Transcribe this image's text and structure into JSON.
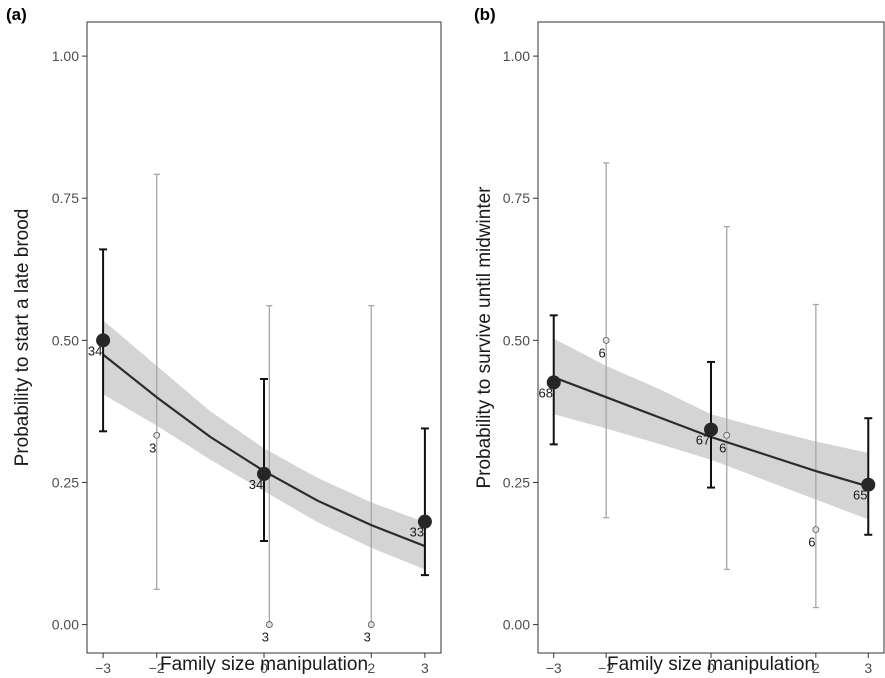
{
  "chart_data": [
    {
      "type": "scatter",
      "panel_label": "(a)",
      "xlabel": "Family size manipulation",
      "ylabel": "Probability to start a late brood",
      "xlim": [
        -3.3,
        3.3
      ],
      "ylim": [
        -0.05,
        1.06
      ],
      "x_ticks": [
        -3,
        -2,
        0,
        2,
        3
      ],
      "x_tick_labels": [
        "−3",
        "−2",
        "0",
        "2",
        "3"
      ],
      "y_ticks": [
        0,
        0.25,
        0.5,
        0.75,
        1
      ],
      "y_tick_labels": [
        "0.00",
        "0.25",
        "0.50",
        "0.75",
        "1.00"
      ],
      "grid": false,
      "fit": {
        "x": [
          -3,
          -2,
          -1,
          0,
          1,
          2,
          3
        ],
        "y": [
          0.475,
          0.4,
          0.33,
          0.27,
          0.218,
          0.175,
          0.138
        ],
        "ci_lower": [
          0.405,
          0.35,
          0.29,
          0.235,
          0.18,
          0.135,
          0.097
        ],
        "ci_upper": [
          0.535,
          0.455,
          0.375,
          0.31,
          0.258,
          0.215,
          0.18
        ]
      },
      "main_points": [
        {
          "x": -3,
          "y": 0.5,
          "lo": 0.34,
          "hi": 0.66,
          "n": "34"
        },
        {
          "x": 0,
          "y": 0.265,
          "lo": 0.147,
          "hi": 0.432,
          "n": "34"
        },
        {
          "x": 3,
          "y": 0.181,
          "lo": 0.087,
          "hi": 0.345,
          "n": "33"
        }
      ],
      "minor_points": [
        {
          "x": -2,
          "y": 0.333,
          "lo": 0.062,
          "hi": 0.792,
          "n": "3"
        },
        {
          "x": 0.1,
          "y": 0.0,
          "lo": 0.0,
          "hi": 0.561,
          "n": "3"
        },
        {
          "x": 2,
          "y": 0.0,
          "lo": 0.0,
          "hi": 0.561,
          "n": "3"
        }
      ]
    },
    {
      "type": "scatter",
      "panel_label": "(b)",
      "xlabel": "Family size manipulation",
      "ylabel": "Probability to survive until midwinter",
      "xlim": [
        -3.3,
        3.3
      ],
      "ylim": [
        -0.05,
        1.06
      ],
      "x_ticks": [
        -3,
        -2,
        0,
        2,
        3
      ],
      "x_tick_labels": [
        "−3",
        "−2",
        "0",
        "2",
        "3"
      ],
      "y_ticks": [
        0,
        0.25,
        0.5,
        0.75,
        1
      ],
      "y_tick_labels": [
        "0.00",
        "0.25",
        "0.50",
        "0.75",
        "1.00"
      ],
      "grid": false,
      "fit": {
        "x": [
          -3,
          -2,
          -1,
          0,
          1,
          2,
          3
        ],
        "y": [
          0.435,
          0.4,
          0.365,
          0.33,
          0.3,
          0.27,
          0.243
        ],
        "ci_lower": [
          0.37,
          0.345,
          0.318,
          0.29,
          0.255,
          0.22,
          0.185
        ],
        "ci_upper": [
          0.503,
          0.455,
          0.415,
          0.37,
          0.345,
          0.322,
          0.302
        ]
      },
      "main_points": [
        {
          "x": -3,
          "y": 0.426,
          "lo": 0.317,
          "hi": 0.544,
          "n": "68"
        },
        {
          "x": 0,
          "y": 0.343,
          "lo": 0.241,
          "hi": 0.462,
          "n": "67"
        },
        {
          "x": 3,
          "y": 0.246,
          "lo": 0.158,
          "hi": 0.363,
          "n": "65"
        }
      ],
      "minor_points": [
        {
          "x": -2,
          "y": 0.5,
          "lo": 0.188,
          "hi": 0.812,
          "n": "6"
        },
        {
          "x": 0.3,
          "y": 0.333,
          "lo": 0.097,
          "hi": 0.7,
          "n": "6"
        },
        {
          "x": 2,
          "y": 0.167,
          "lo": 0.03,
          "hi": 0.563,
          "n": "6"
        }
      ]
    }
  ]
}
